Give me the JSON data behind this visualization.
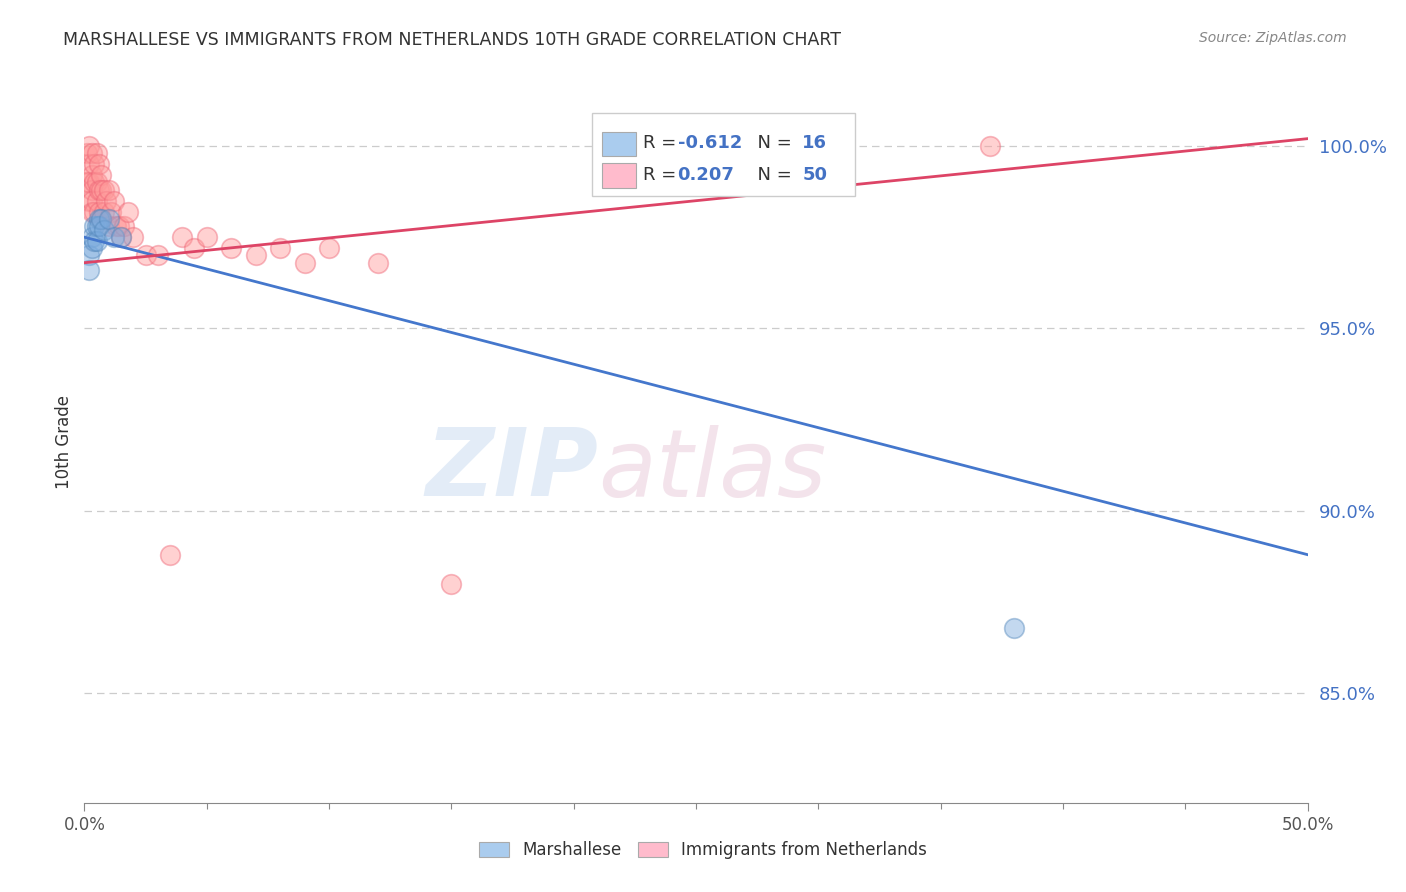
{
  "title": "MARSHALLESE VS IMMIGRANTS FROM NETHERLANDS 10TH GRADE CORRELATION CHART",
  "source": "Source: ZipAtlas.com",
  "ylabel": "10th Grade",
  "xlim": [
    0.0,
    0.5
  ],
  "ylim": [
    0.82,
    1.018
  ],
  "xtick_major": [
    0.0,
    0.5
  ],
  "xtick_major_labels": [
    "0.0%",
    "50.0%"
  ],
  "xtick_minor": [
    0.05,
    0.1,
    0.15,
    0.2,
    0.25,
    0.3,
    0.35,
    0.4,
    0.45
  ],
  "yticks_right": [
    0.85,
    0.9,
    0.95,
    1.0
  ],
  "ytick_labels_right": [
    "85.0%",
    "90.0%",
    "95.0%",
    "100.0%"
  ],
  "grid_color": "#cccccc",
  "blue_color": "#7aaadd",
  "pink_color": "#ff9999",
  "blue_edge": "#5588bb",
  "pink_edge": "#ee6677",
  "blue_label": "Marshallese",
  "pink_label": "Immigrants from Netherlands",
  "blue_R": "-0.612",
  "blue_N": "16",
  "pink_R": "0.207",
  "pink_N": "50",
  "blue_scatter_x": [
    0.002,
    0.002,
    0.003,
    0.003,
    0.004,
    0.004,
    0.005,
    0.005,
    0.006,
    0.006,
    0.007,
    0.008,
    0.01,
    0.012,
    0.015,
    0.38
  ],
  "blue_scatter_y": [
    0.97,
    0.966,
    0.975,
    0.972,
    0.978,
    0.974,
    0.978,
    0.974,
    0.98,
    0.978,
    0.98,
    0.977,
    0.98,
    0.975,
    0.975,
    0.868
  ],
  "pink_scatter_x": [
    0.001,
    0.001,
    0.002,
    0.002,
    0.002,
    0.002,
    0.003,
    0.003,
    0.003,
    0.003,
    0.003,
    0.004,
    0.004,
    0.004,
    0.005,
    0.005,
    0.005,
    0.006,
    0.006,
    0.006,
    0.007,
    0.007,
    0.007,
    0.008,
    0.008,
    0.009,
    0.01,
    0.01,
    0.011,
    0.012,
    0.013,
    0.014,
    0.015,
    0.016,
    0.018,
    0.02,
    0.025,
    0.03,
    0.035,
    0.04,
    0.045,
    0.05,
    0.06,
    0.07,
    0.08,
    0.09,
    0.1,
    0.12,
    0.15,
    0.37
  ],
  "pink_scatter_y": [
    0.998,
    0.99,
    1.0,
    0.995,
    0.99,
    0.985,
    0.998,
    0.992,
    0.988,
    0.985,
    0.982,
    0.995,
    0.99,
    0.982,
    0.998,
    0.99,
    0.985,
    0.995,
    0.988,
    0.982,
    0.992,
    0.988,
    0.98,
    0.988,
    0.982,
    0.985,
    0.988,
    0.978,
    0.982,
    0.985,
    0.978,
    0.978,
    0.975,
    0.978,
    0.982,
    0.975,
    0.97,
    0.97,
    0.888,
    0.975,
    0.972,
    0.975,
    0.972,
    0.97,
    0.972,
    0.968,
    0.972,
    0.968,
    0.88,
    1.0
  ],
  "blue_line_x": [
    0.0,
    0.5
  ],
  "blue_line_y": [
    0.975,
    0.888
  ],
  "pink_line_x": [
    0.0,
    0.5
  ],
  "pink_line_y": [
    0.968,
    1.002
  ],
  "watermark_zip": "ZIP",
  "watermark_atlas": "atlas",
  "background_color": "#ffffff",
  "title_color": "#333333",
  "right_tick_color": "#4472c4",
  "legend_blue_fill": "#aaccee",
  "legend_pink_fill": "#ffbbcc",
  "legend_text_dark": "#333333",
  "legend_text_blue": "#4472c4"
}
